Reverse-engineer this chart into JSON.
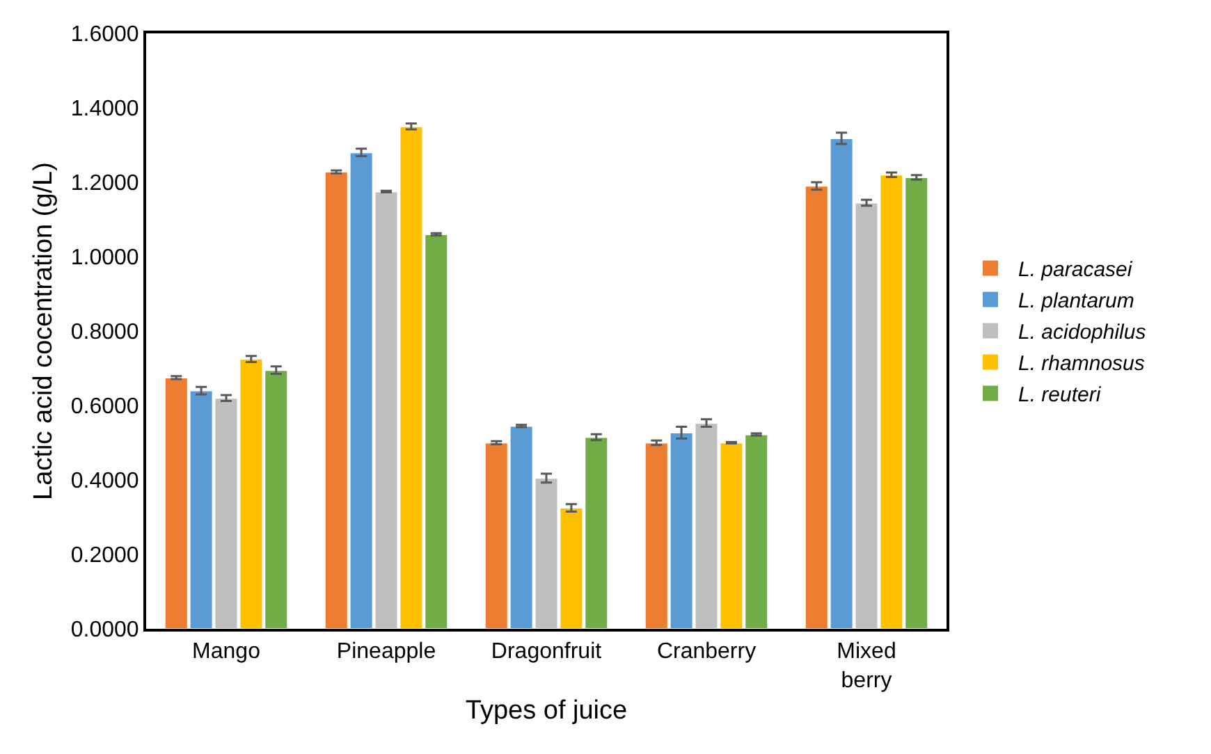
{
  "chart_data": {
    "type": "bar",
    "xlabel": "Types of juice",
    "ylabel": "Lactic acid cocentration (g/L)",
    "categories": [
      "Mango",
      "Pineapple",
      "Dragonfruit",
      "Cranberry",
      "Mixed\nberry"
    ],
    "series": [
      {
        "name": "L. paracasei",
        "color": "#ed7d31",
        "values": [
          0.675,
          1.228,
          0.5,
          0.5,
          1.19
        ],
        "errors": [
          0.004,
          0.004,
          0.004,
          0.006,
          0.01
        ]
      },
      {
        "name": "L. plantarum",
        "color": "#5b9bd5",
        "values": [
          0.64,
          1.28,
          0.545,
          0.527,
          1.318
        ],
        "errors": [
          0.01,
          0.01,
          0.003,
          0.016,
          0.015
        ]
      },
      {
        "name": "L. acidophilus",
        "color": "#bfbfbf",
        "values": [
          0.62,
          1.175,
          0.405,
          0.553,
          1.145
        ],
        "errors": [
          0.008,
          0.002,
          0.012,
          0.01,
          0.008
        ]
      },
      {
        "name": "L. rhamnosus",
        "color": "#ffc000",
        "values": [
          0.725,
          1.35,
          0.325,
          0.5,
          1.22
        ],
        "errors": [
          0.008,
          0.008,
          0.01,
          0.002,
          0.006
        ]
      },
      {
        "name": "L. reuteri",
        "color": "#70ad47",
        "values": [
          0.695,
          1.06,
          0.515,
          0.522,
          1.213
        ],
        "errors": [
          0.01,
          0.003,
          0.008,
          0.003,
          0.006
        ]
      }
    ],
    "ylim": [
      0,
      1.6
    ],
    "yticks": [
      {
        "value": 0,
        "label": "0.0000"
      },
      {
        "value": 0.2,
        "label": "0.2000"
      },
      {
        "value": 0.4,
        "label": "0.4000"
      },
      {
        "value": 0.6,
        "label": "0.6000"
      },
      {
        "value": 0.8,
        "label": "0.8000"
      },
      {
        "value": 1.0,
        "label": "1.0000"
      },
      {
        "value": 1.2,
        "label": "1.2000"
      },
      {
        "value": 1.4,
        "label": "1.4000"
      },
      {
        "value": 1.6,
        "label": "1.6000"
      }
    ],
    "legend": "right"
  }
}
